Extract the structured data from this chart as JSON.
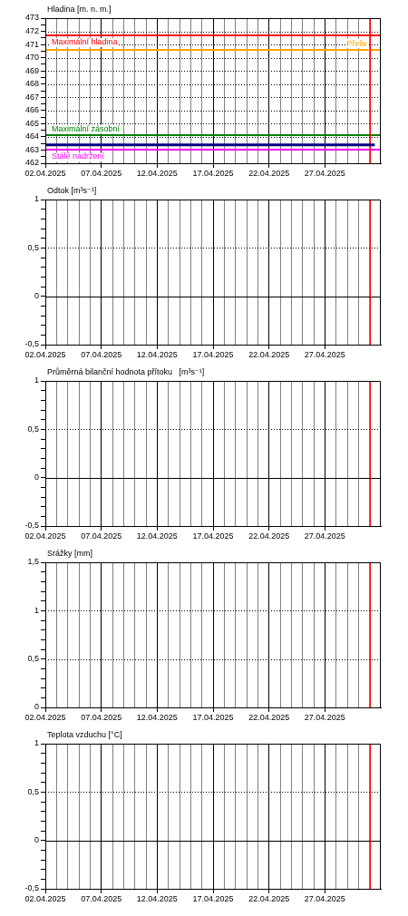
{
  "chart_data": [
    {
      "type": "line",
      "title": "Hladina [m. n. m.]",
      "series": [
        {
          "color": "#000080",
          "x": [
            "2025-04-02",
            "2025-05-01T11:00"
          ],
          "values": [
            463.4,
            463.4
          ]
        }
      ],
      "xlim": [
        "2025-04-02",
        "2025-05-02"
      ],
      "xticks": [
        {
          "value": "2025-04-02",
          "label": "02.04.2025"
        },
        {
          "value": "2025-04-03",
          "label": null
        },
        {
          "value": "2025-04-04",
          "label": null
        },
        {
          "value": "2025-04-05",
          "label": null
        },
        {
          "value": "2025-04-06",
          "label": null
        },
        {
          "value": "2025-04-07",
          "label": "07.04.2025"
        },
        {
          "value": "2025-04-08",
          "label": null
        },
        {
          "value": "2025-04-09",
          "label": null
        },
        {
          "value": "2025-04-10",
          "label": null
        },
        {
          "value": "2025-04-11",
          "label": null
        },
        {
          "value": "2025-04-12",
          "label": "12.04.2025"
        },
        {
          "value": "2025-04-13",
          "label": null
        },
        {
          "value": "2025-04-14",
          "label": null
        },
        {
          "value": "2025-04-15",
          "label": null
        },
        {
          "value": "2025-04-16",
          "label": null
        },
        {
          "value": "2025-04-17",
          "label": "17.04.2025"
        },
        {
          "value": "2025-04-18",
          "label": null
        },
        {
          "value": "2025-04-19",
          "label": null
        },
        {
          "value": "2025-04-20",
          "label": null
        },
        {
          "value": "2025-04-21",
          "label": null
        },
        {
          "value": "2025-04-22",
          "label": "22.04.2025"
        },
        {
          "value": "2025-04-23",
          "label": null
        },
        {
          "value": "2025-04-24",
          "label": null
        },
        {
          "value": "2025-04-25",
          "label": null
        },
        {
          "value": "2025-04-26",
          "label": null
        },
        {
          "value": "2025-04-27",
          "label": "27.04.2025"
        },
        {
          "value": "2025-04-28",
          "label": null
        },
        {
          "value": "2025-04-29",
          "label": null
        },
        {
          "value": "2025-04-30",
          "label": null
        },
        {
          "value": "2025-05-01",
          "label": null
        }
      ],
      "ylim": [
        462,
        473
      ],
      "yticks": [
        462,
        {
          "value": 462.5,
          "label": null
        },
        463,
        {
          "value": 463.5,
          "label": null
        },
        464,
        {
          "value": 464.5,
          "label": null
        },
        465,
        {
          "value": 465.5,
          "label": null
        },
        466,
        {
          "value": 466.5,
          "label": null
        },
        467,
        {
          "value": 467.5,
          "label": null
        },
        468,
        {
          "value": 468.5,
          "label": null
        },
        469,
        {
          "value": 469.5,
          "label": null
        },
        470,
        {
          "value": 470.5,
          "label": null
        },
        471,
        {
          "value": 471.5,
          "label": null
        },
        472,
        {
          "value": 472.5,
          "label": null
        },
        473
      ],
      "grid": true,
      "ref_lines": [
        {
          "axis": "y",
          "value": 471.7,
          "label": "Maximální hladina",
          "color": "#ff0000"
        },
        {
          "axis": "y",
          "value": 470.6,
          "label": "Přeliv",
          "color": "#ffa500"
        },
        {
          "axis": "y",
          "value": 464.1,
          "label": "Maximální zásobní",
          "color": "#008000"
        },
        {
          "axis": "y",
          "value": 463.0,
          "label": "Stálé nadržení",
          "color": "#ff00ff"
        },
        {
          "axis": "x",
          "value": "2025-05-01",
          "color": "#ff0000"
        }
      ]
    },
    {
      "type": "line",
      "title": "Odtok [m³s⁻¹]",
      "xlim": [
        "2025-04-02",
        "2025-05-02"
      ],
      "xticks": [
        {
          "value": "2025-04-02",
          "label": "02.04.2025"
        },
        {
          "value": "2025-04-03",
          "label": null
        },
        {
          "value": "2025-04-04",
          "label": null
        },
        {
          "value": "2025-04-05",
          "label": null
        },
        {
          "value": "2025-04-06",
          "label": null
        },
        {
          "value": "2025-04-07",
          "label": "07.04.2025"
        },
        {
          "value": "2025-04-08",
          "label": null
        },
        {
          "value": "2025-04-09",
          "label": null
        },
        {
          "value": "2025-04-10",
          "label": null
        },
        {
          "value": "2025-04-11",
          "label": null
        },
        {
          "value": "2025-04-12",
          "label": "12.04.2025"
        },
        {
          "value": "2025-04-13",
          "label": null
        },
        {
          "value": "2025-04-14",
          "label": null
        },
        {
          "value": "2025-04-15",
          "label": null
        },
        {
          "value": "2025-04-16",
          "label": null
        },
        {
          "value": "2025-04-17",
          "label": "17.04.2025"
        },
        {
          "value": "2025-04-18",
          "label": null
        },
        {
          "value": "2025-04-19",
          "label": null
        },
        {
          "value": "2025-04-20",
          "label": null
        },
        {
          "value": "2025-04-21",
          "label": null
        },
        {
          "value": "2025-04-22",
          "label": "22.04.2025"
        },
        {
          "value": "2025-04-23",
          "label": null
        },
        {
          "value": "2025-04-24",
          "label": null
        },
        {
          "value": "2025-04-25",
          "label": null
        },
        {
          "value": "2025-04-26",
          "label": null
        },
        {
          "value": "2025-04-27",
          "label": "27.04.2025"
        },
        {
          "value": "2025-04-28",
          "label": null
        },
        {
          "value": "2025-04-29",
          "label": null
        },
        {
          "value": "2025-04-30",
          "label": null
        },
        {
          "value": "2025-05-01",
          "label": null
        }
      ],
      "ylim": [
        -0.5,
        1
      ],
      "yticks": [
        {
          "value": -0.5,
          "label": "-0,5"
        },
        {
          "value": -0.4,
          "label": null
        },
        {
          "value": -0.3,
          "label": null
        },
        {
          "value": -0.2,
          "label": null
        },
        {
          "value": -0.1,
          "label": null
        },
        0,
        {
          "value": 0.1,
          "label": null
        },
        {
          "value": 0.2,
          "label": null
        },
        {
          "value": 0.3,
          "label": null
        },
        {
          "value": 0.4,
          "label": null
        },
        {
          "value": 0.5,
          "label": "0,5"
        },
        {
          "value": 0.6,
          "label": null
        },
        {
          "value": 0.7,
          "label": null
        },
        {
          "value": 0.8,
          "label": null
        },
        {
          "value": 0.9,
          "label": null
        },
        1
      ],
      "grid": "x",
      "ref_lines": [
        {
          "axis": "y",
          "value": 0,
          "color": "#000000"
        },
        {
          "axis": "y",
          "value": 0.5,
          "color": "#000000",
          "line_style": "dotted"
        },
        {
          "axis": "x",
          "value": "2025-05-01",
          "color": "#ff0000"
        }
      ]
    },
    {
      "type": "line",
      "title": "Průměrná bilanční hodnota přítoku   [m³s⁻¹]",
      "xlim": [
        "2025-04-02",
        "2025-05-02"
      ],
      "xticks": [
        {
          "value": "2025-04-02",
          "label": "02.04.2025"
        },
        {
          "value": "2025-04-03",
          "label": null
        },
        {
          "value": "2025-04-04",
          "label": null
        },
        {
          "value": "2025-04-05",
          "label": null
        },
        {
          "value": "2025-04-06",
          "label": null
        },
        {
          "value": "2025-04-07",
          "label": "07.04.2025"
        },
        {
          "value": "2025-04-08",
          "label": null
        },
        {
          "value": "2025-04-09",
          "label": null
        },
        {
          "value": "2025-04-10",
          "label": null
        },
        {
          "value": "2025-04-11",
          "label": null
        },
        {
          "value": "2025-04-12",
          "label": "12.04.2025"
        },
        {
          "value": "2025-04-13",
          "label": null
        },
        {
          "value": "2025-04-14",
          "label": null
        },
        {
          "value": "2025-04-15",
          "label": null
        },
        {
          "value": "2025-04-16",
          "label": null
        },
        {
          "value": "2025-04-17",
          "label": "17.04.2025"
        },
        {
          "value": "2025-04-18",
          "label": null
        },
        {
          "value": "2025-04-19",
          "label": null
        },
        {
          "value": "2025-04-20",
          "label": null
        },
        {
          "value": "2025-04-21",
          "label": null
        },
        {
          "value": "2025-04-22",
          "label": "22.04.2025"
        },
        {
          "value": "2025-04-23",
          "label": null
        },
        {
          "value": "2025-04-24",
          "label": null
        },
        {
          "value": "2025-04-25",
          "label": null
        },
        {
          "value": "2025-04-26",
          "label": null
        },
        {
          "value": "2025-04-27",
          "label": "27.04.2025"
        },
        {
          "value": "2025-04-28",
          "label": null
        },
        {
          "value": "2025-04-29",
          "label": null
        },
        {
          "value": "2025-04-30",
          "label": null
        },
        {
          "value": "2025-05-01",
          "label": null
        }
      ],
      "ylim": [
        -0.5,
        1
      ],
      "yticks": [
        {
          "value": -0.5,
          "label": "-0,5"
        },
        {
          "value": -0.4,
          "label": null
        },
        {
          "value": -0.3,
          "label": null
        },
        {
          "value": -0.2,
          "label": null
        },
        {
          "value": -0.1,
          "label": null
        },
        0,
        {
          "value": 0.1,
          "label": null
        },
        {
          "value": 0.2,
          "label": null
        },
        {
          "value": 0.3,
          "label": null
        },
        {
          "value": 0.4,
          "label": null
        },
        {
          "value": 0.5,
          "label": "0,5"
        },
        {
          "value": 0.6,
          "label": null
        },
        {
          "value": 0.7,
          "label": null
        },
        {
          "value": 0.8,
          "label": null
        },
        {
          "value": 0.9,
          "label": null
        },
        1
      ],
      "grid": "x",
      "ref_lines": [
        {
          "axis": "y",
          "value": 0,
          "color": "#000000"
        },
        {
          "axis": "y",
          "value": 0.5,
          "color": "#000000",
          "line_style": "dotted"
        },
        {
          "axis": "x",
          "value": "2025-05-01",
          "color": "#ff0000"
        }
      ]
    },
    {
      "type": "line",
      "title": "Srážky [mm]",
      "xlim": [
        "2025-04-02",
        "2025-05-02"
      ],
      "xticks": [
        {
          "value": "2025-04-02",
          "label": "02.04.2025"
        },
        {
          "value": "2025-04-03",
          "label": null
        },
        {
          "value": "2025-04-04",
          "label": null
        },
        {
          "value": "2025-04-05",
          "label": null
        },
        {
          "value": "2025-04-06",
          "label": null
        },
        {
          "value": "2025-04-07",
          "label": "07.04.2025"
        },
        {
          "value": "2025-04-08",
          "label": null
        },
        {
          "value": "2025-04-09",
          "label": null
        },
        {
          "value": "2025-04-10",
          "label": null
        },
        {
          "value": "2025-04-11",
          "label": null
        },
        {
          "value": "2025-04-12",
          "label": "12.04.2025"
        },
        {
          "value": "2025-04-13",
          "label": null
        },
        {
          "value": "2025-04-14",
          "label": null
        },
        {
          "value": "2025-04-15",
          "label": null
        },
        {
          "value": "2025-04-16",
          "label": null
        },
        {
          "value": "2025-04-17",
          "label": "17.04.2025"
        },
        {
          "value": "2025-04-18",
          "label": null
        },
        {
          "value": "2025-04-19",
          "label": null
        },
        {
          "value": "2025-04-20",
          "label": null
        },
        {
          "value": "2025-04-21",
          "label": null
        },
        {
          "value": "2025-04-22",
          "label": "22.04.2025"
        },
        {
          "value": "2025-04-23",
          "label": null
        },
        {
          "value": "2025-04-24",
          "label": null
        },
        {
          "value": "2025-04-25",
          "label": null
        },
        {
          "value": "2025-04-26",
          "label": null
        },
        {
          "value": "2025-04-27",
          "label": "27.04.2025"
        },
        {
          "value": "2025-04-28",
          "label": null
        },
        {
          "value": "2025-04-29",
          "label": null
        },
        {
          "value": "2025-04-30",
          "label": null
        },
        {
          "value": "2025-05-01",
          "label": null
        }
      ],
      "ylim": [
        0,
        1.5
      ],
      "yticks": [
        0,
        {
          "value": 0.1,
          "label": null
        },
        {
          "value": 0.2,
          "label": null
        },
        {
          "value": 0.3,
          "label": null
        },
        {
          "value": 0.4,
          "label": null
        },
        {
          "value": 0.5,
          "label": "0,5"
        },
        {
          "value": 0.6,
          "label": null
        },
        {
          "value": 0.7,
          "label": null
        },
        {
          "value": 0.8,
          "label": null
        },
        {
          "value": 0.9,
          "label": null
        },
        1,
        {
          "value": 1.1,
          "label": null
        },
        {
          "value": 1.2,
          "label": null
        },
        {
          "value": 1.3,
          "label": null
        },
        {
          "value": 1.4,
          "label": null
        },
        {
          "value": 1.5,
          "label": "1,5"
        }
      ],
      "grid": true,
      "ref_lines": [
        {
          "axis": "x",
          "value": "2025-05-01",
          "color": "#ff0000"
        }
      ]
    },
    {
      "type": "line",
      "title": "Teplota vzduchu [°C]",
      "xlim": [
        "2025-04-02",
        "2025-05-02"
      ],
      "xticks": [
        {
          "value": "2025-04-02",
          "label": "02.04.2025"
        },
        {
          "value": "2025-04-03",
          "label": null
        },
        {
          "value": "2025-04-04",
          "label": null
        },
        {
          "value": "2025-04-05",
          "label": null
        },
        {
          "value": "2025-04-06",
          "label": null
        },
        {
          "value": "2025-04-07",
          "label": "07.04.2025"
        },
        {
          "value": "2025-04-08",
          "label": null
        },
        {
          "value": "2025-04-09",
          "label": null
        },
        {
          "value": "2025-04-10",
          "label": null
        },
        {
          "value": "2025-04-11",
          "label": null
        },
        {
          "value": "2025-04-12",
          "label": "12.04.2025"
        },
        {
          "value": "2025-04-13",
          "label": null
        },
        {
          "value": "2025-04-14",
          "label": null
        },
        {
          "value": "2025-04-15",
          "label": null
        },
        {
          "value": "2025-04-16",
          "label": null
        },
        {
          "value": "2025-04-17",
          "label": "17.04.2025"
        },
        {
          "value": "2025-04-18",
          "label": null
        },
        {
          "value": "2025-04-19",
          "label": null
        },
        {
          "value": "2025-04-20",
          "label": null
        },
        {
          "value": "2025-04-21",
          "label": null
        },
        {
          "value": "2025-04-22",
          "label": "22.04.2025"
        },
        {
          "value": "2025-04-23",
          "label": null
        },
        {
          "value": "2025-04-24",
          "label": null
        },
        {
          "value": "2025-04-25",
          "label": null
        },
        {
          "value": "2025-04-26",
          "label": null
        },
        {
          "value": "2025-04-27",
          "label": "27.04.2025"
        },
        {
          "value": "2025-04-28",
          "label": null
        },
        {
          "value": "2025-04-29",
          "label": null
        },
        {
          "value": "2025-04-30",
          "label": null
        },
        {
          "value": "2025-05-01",
          "label": null
        }
      ],
      "ylim": [
        -0.5,
        1
      ],
      "yticks": [
        {
          "value": -0.5,
          "label": "-0,5"
        },
        {
          "value": -0.4,
          "label": null
        },
        {
          "value": -0.3,
          "label": null
        },
        {
          "value": -0.2,
          "label": null
        },
        {
          "value": -0.1,
          "label": null
        },
        0,
        {
          "value": 0.1,
          "label": null
        },
        {
          "value": 0.2,
          "label": null
        },
        {
          "value": 0.3,
          "label": null
        },
        {
          "value": 0.4,
          "label": null
        },
        {
          "value": 0.5,
          "label": "0,5"
        },
        {
          "value": 0.6,
          "label": null
        },
        {
          "value": 0.7,
          "label": null
        },
        {
          "value": 0.8,
          "label": null
        },
        {
          "value": 0.9,
          "label": null
        },
        1
      ],
      "grid": "x",
      "ref_lines": [
        {
          "axis": "y",
          "value": 0,
          "color": "#000000"
        },
        {
          "axis": "y",
          "value": 0.5,
          "color": "#000000",
          "line_style": "dotted"
        },
        {
          "axis": "x",
          "value": "2025-05-01",
          "color": "#ff0000"
        }
      ]
    }
  ]
}
